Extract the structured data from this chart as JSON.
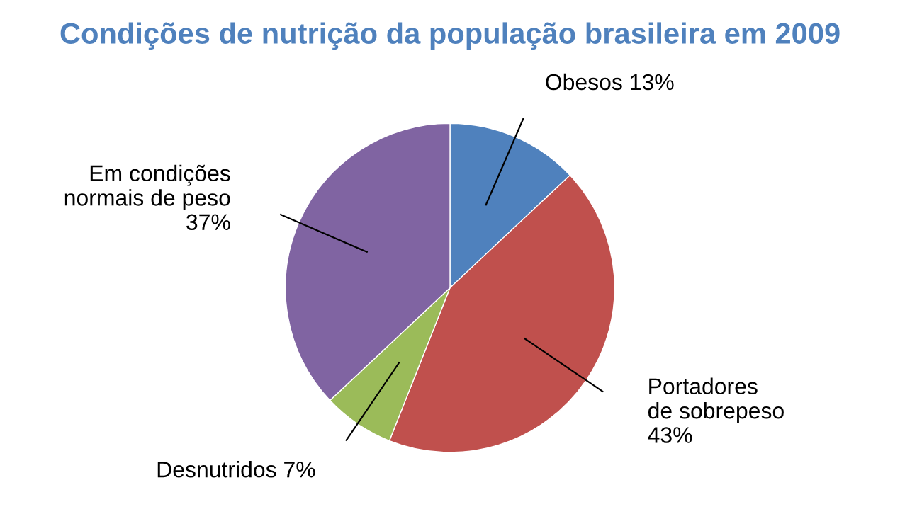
{
  "chart_data": {
    "type": "pie",
    "title": "Condições de nutrição da população brasileira em 2009",
    "categories": [
      "Obesos",
      "Portadores\nde sobrepeso",
      "Desnutridos",
      "Em condições\nnormais de peso"
    ],
    "values": [
      13,
      43,
      7,
      37
    ],
    "value_labels": [
      "13%",
      "43%",
      "7%",
      "37%"
    ],
    "colors": [
      "#4f81bd",
      "#c0504d",
      "#9bbb59",
      "#8064a2"
    ],
    "legend": false
  }
}
